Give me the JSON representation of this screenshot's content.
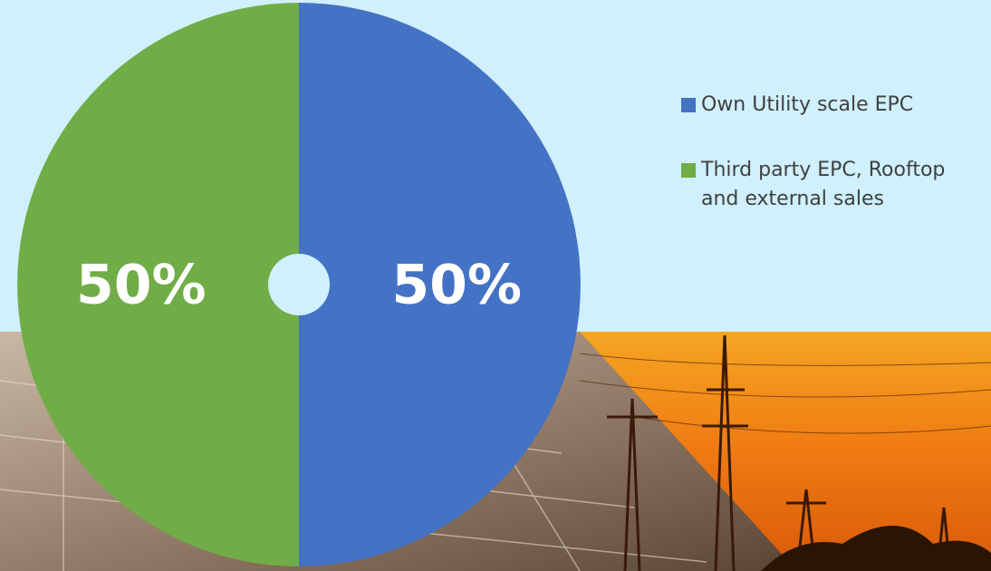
{
  "chart_data": {
    "type": "pie",
    "series": [
      {
        "name": "Own Utility scale EPC",
        "color": "#4472c4",
        "values": [
          50
        ],
        "value_labels": [
          "50%"
        ]
      },
      {
        "name": "Third party EPC, Rooftop and external sales",
        "color": "#70ad47",
        "values": [
          50
        ],
        "value_labels": [
          "50%"
        ]
      }
    ],
    "legend": "right"
  }
}
